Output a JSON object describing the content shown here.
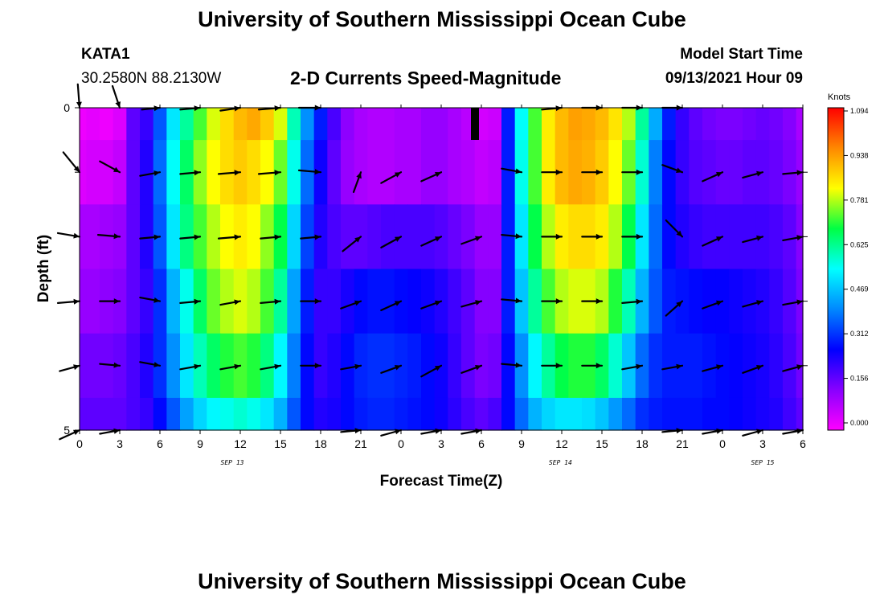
{
  "page": {
    "title_top": "University of Southern Mississippi Ocean Cube",
    "title_bottom": "University of Southern Mississippi Ocean Cube",
    "station_id": "KATA1",
    "coordinates": "30.2580N  88.2130W",
    "subtitle": "2-D Currents Speed-Magnitude",
    "model_start_label": "Model Start Time",
    "model_start_value": "09/13/2021 Hour 09"
  },
  "chart_data": {
    "type": "heatmap",
    "title": "2-D Currents Speed-Magnitude",
    "xlabel": "Forecast Time(Z)",
    "ylabel": "Depth (ft)",
    "xlim": [
      0,
      54
    ],
    "ylim": [
      0,
      5
    ],
    "x_tick_labels": [
      "0",
      "3",
      "6",
      "9",
      "12",
      "15",
      "18",
      "21",
      "0",
      "3",
      "6",
      "9",
      "12",
      "15",
      "18",
      "21",
      "0",
      "3",
      "6"
    ],
    "date_labels": [
      {
        "label": "SEP 13",
        "x": 11.4
      },
      {
        "label": "SEP 14",
        "x": 35.9
      },
      {
        "label": "SEP 15",
        "x": 51.0
      }
    ],
    "y_tick_labels": [
      {
        "label": "0",
        "value": 0
      },
      {
        "label": "5",
        "value": 5
      }
    ],
    "y_minor_ticks": [
      1,
      2,
      3,
      4
    ],
    "colorbar": {
      "units": "Knots",
      "min": 0.0,
      "max": 1.094,
      "tick_labels": [
        "1.094",
        "0.938",
        "0.781",
        "0.625",
        "0.469",
        "0.312",
        "0.156",
        "0.000"
      ],
      "colors": [
        "#ff00ff",
        "#8800ff",
        "#0000ff",
        "#0088ff",
        "#00ffff",
        "#00ff44",
        "#ffff00",
        "#ff8800",
        "#ff0000"
      ]
    },
    "time_hours": [
      0,
      1,
      2,
      3,
      4,
      5,
      6,
      7,
      8,
      9,
      10,
      11,
      12,
      13,
      14,
      15,
      16,
      17,
      18,
      19,
      20,
      21,
      22,
      23,
      24,
      25,
      26,
      27,
      28,
      29,
      30,
      31,
      32,
      33,
      34,
      35,
      36,
      37,
      38,
      39,
      40,
      41,
      42,
      43,
      44,
      45,
      46,
      47,
      48,
      49,
      50,
      51,
      52,
      53,
      54
    ],
    "depth_layers": [
      {
        "depth_range": [
          0,
          0.5
        ],
        "speed": [
          0.02,
          0.03,
          0.02,
          0.04,
          0.18,
          0.22,
          0.36,
          0.52,
          0.62,
          0.72,
          0.8,
          0.86,
          0.9,
          0.92,
          0.88,
          0.8,
          0.6,
          0.42,
          0.3,
          0.2,
          0.13,
          0.1,
          0.09,
          0.09,
          0.1,
          0.1,
          0.12,
          0.12,
          0.1,
          0.08,
          0.05,
          0.06,
          0.3,
          0.55,
          0.72,
          0.84,
          0.9,
          0.93,
          0.92,
          0.9,
          0.85,
          0.78,
          0.62,
          0.45,
          0.3,
          0.22,
          0.18,
          0.16,
          0.15,
          0.15,
          0.16,
          0.17,
          0.16,
          0.14,
          0.1
        ]
      },
      {
        "depth_range": [
          0.5,
          1.5
        ],
        "speed": [
          0.04,
          0.05,
          0.05,
          0.07,
          0.18,
          0.24,
          0.38,
          0.55,
          0.66,
          0.76,
          0.82,
          0.86,
          0.88,
          0.86,
          0.82,
          0.74,
          0.56,
          0.38,
          0.26,
          0.18,
          0.12,
          0.1,
          0.09,
          0.09,
          0.1,
          0.1,
          0.12,
          0.12,
          0.1,
          0.09,
          0.07,
          0.08,
          0.3,
          0.56,
          0.72,
          0.84,
          0.9,
          0.92,
          0.91,
          0.88,
          0.82,
          0.74,
          0.58,
          0.4,
          0.28,
          0.22,
          0.19,
          0.18,
          0.17,
          0.17,
          0.18,
          0.18,
          0.17,
          0.15,
          0.12
        ]
      },
      {
        "depth_range": [
          1.5,
          2.5
        ],
        "speed": [
          0.1,
          0.1,
          0.11,
          0.12,
          0.18,
          0.24,
          0.36,
          0.52,
          0.64,
          0.72,
          0.78,
          0.82,
          0.84,
          0.82,
          0.76,
          0.68,
          0.5,
          0.34,
          0.24,
          0.2,
          0.18,
          0.18,
          0.19,
          0.2,
          0.2,
          0.2,
          0.2,
          0.19,
          0.17,
          0.15,
          0.12,
          0.12,
          0.3,
          0.52,
          0.68,
          0.78,
          0.84,
          0.86,
          0.86,
          0.84,
          0.78,
          0.68,
          0.52,
          0.38,
          0.28,
          0.24,
          0.22,
          0.21,
          0.21,
          0.21,
          0.21,
          0.21,
          0.2,
          0.18,
          0.14
        ]
      },
      {
        "depth_range": [
          2.5,
          3.5
        ],
        "speed": [
          0.12,
          0.12,
          0.13,
          0.14,
          0.18,
          0.22,
          0.32,
          0.46,
          0.56,
          0.66,
          0.74,
          0.78,
          0.8,
          0.78,
          0.72,
          0.62,
          0.44,
          0.3,
          0.22,
          0.22,
          0.25,
          0.28,
          0.29,
          0.29,
          0.28,
          0.27,
          0.26,
          0.24,
          0.21,
          0.18,
          0.14,
          0.14,
          0.3,
          0.48,
          0.62,
          0.72,
          0.78,
          0.8,
          0.8,
          0.78,
          0.7,
          0.6,
          0.46,
          0.36,
          0.3,
          0.29,
          0.28,
          0.27,
          0.27,
          0.26,
          0.25,
          0.24,
          0.22,
          0.19,
          0.15
        ]
      },
      {
        "depth_range": [
          3.5,
          4.5
        ],
        "speed": [
          0.16,
          0.16,
          0.16,
          0.17,
          0.2,
          0.24,
          0.32,
          0.42,
          0.52,
          0.6,
          0.66,
          0.7,
          0.72,
          0.7,
          0.64,
          0.54,
          0.4,
          0.28,
          0.22,
          0.24,
          0.28,
          0.31,
          0.32,
          0.32,
          0.31,
          0.3,
          0.28,
          0.26,
          0.22,
          0.18,
          0.15,
          0.16,
          0.28,
          0.42,
          0.54,
          0.62,
          0.68,
          0.7,
          0.7,
          0.66,
          0.58,
          0.48,
          0.38,
          0.32,
          0.3,
          0.3,
          0.3,
          0.29,
          0.28,
          0.27,
          0.26,
          0.25,
          0.23,
          0.2,
          0.16
        ]
      },
      {
        "depth_range": [
          4.5,
          5.0
        ],
        "speed": [
          0.18,
          0.18,
          0.18,
          0.18,
          0.2,
          0.22,
          0.28,
          0.36,
          0.44,
          0.5,
          0.54,
          0.56,
          0.58,
          0.56,
          0.52,
          0.46,
          0.36,
          0.28,
          0.24,
          0.25,
          0.28,
          0.3,
          0.31,
          0.31,
          0.3,
          0.29,
          0.28,
          0.26,
          0.23,
          0.2,
          0.18,
          0.2,
          0.28,
          0.38,
          0.46,
          0.5,
          0.52,
          0.52,
          0.51,
          0.48,
          0.43,
          0.38,
          0.32,
          0.3,
          0.29,
          0.29,
          0.29,
          0.28,
          0.28,
          0.27,
          0.26,
          0.25,
          0.24,
          0.21,
          0.18
        ]
      }
    ],
    "vector_times": [
      0,
      3,
      6,
      9,
      12,
      15,
      18,
      21,
      24,
      27,
      30,
      33,
      36,
      39,
      42,
      45,
      48,
      51,
      54
    ],
    "vectors": [
      {
        "depth": 0,
        "u": [
          0.05,
          0.2,
          0.5,
          0.55,
          0.55,
          0.6,
          0.6,
          0.0,
          0.0,
          0.0,
          0.0,
          0.0,
          0.55,
          0.55,
          0.55,
          0.55,
          0.0,
          0.0,
          0.0
        ],
        "v": [
          -0.65,
          -0.6,
          0.05,
          0.05,
          0.08,
          0.05,
          0.0,
          0.0,
          0.0,
          0.0,
          0.0,
          0.0,
          0.05,
          0.0,
          0.0,
          0.0,
          0.0,
          0.0,
          0.0
        ]
      },
      {
        "depth": 1,
        "u": [
          0.45,
          0.55,
          0.55,
          0.55,
          0.6,
          0.6,
          0.6,
          0.2,
          0.55,
          0.55,
          0.0,
          0.55,
          0.55,
          0.55,
          0.55,
          0.55,
          0.55,
          0.55,
          0.55
        ],
        "v": [
          -0.55,
          -0.3,
          0.1,
          0.05,
          0.05,
          0.05,
          -0.05,
          0.55,
          0.3,
          0.25,
          0.0,
          -0.1,
          0.0,
          0.0,
          0.0,
          -0.2,
          0.25,
          0.15,
          0.05
        ]
      },
      {
        "depth": 2,
        "u": [
          0.6,
          0.6,
          0.55,
          0.55,
          0.6,
          0.55,
          0.55,
          0.5,
          0.55,
          0.55,
          0.55,
          0.55,
          0.55,
          0.55,
          0.55,
          0.45,
          0.55,
          0.55,
          0.55
        ],
        "v": [
          -0.1,
          -0.05,
          0.05,
          0.05,
          0.05,
          0.05,
          0.05,
          0.4,
          0.3,
          0.25,
          0.2,
          -0.05,
          0.0,
          0.0,
          0.0,
          -0.45,
          0.25,
          0.15,
          0.1
        ]
      },
      {
        "depth": 3,
        "u": [
          0.6,
          0.55,
          0.55,
          0.55,
          0.55,
          0.55,
          0.55,
          0.55,
          0.55,
          0.55,
          0.55,
          0.55,
          0.55,
          0.55,
          0.55,
          0.45,
          0.55,
          0.55,
          0.55
        ],
        "v": [
          0.05,
          0.0,
          -0.1,
          0.05,
          0.1,
          0.05,
          0.0,
          0.2,
          0.25,
          0.2,
          0.15,
          -0.05,
          0.0,
          0.0,
          0.05,
          0.4,
          0.2,
          0.15,
          0.1
        ]
      },
      {
        "depth": 4,
        "u": [
          0.55,
          0.55,
          0.55,
          0.55,
          0.55,
          0.55,
          0.55,
          0.55,
          0.55,
          0.55,
          0.55,
          0.55,
          0.55,
          0.55,
          0.55,
          0.55,
          0.55,
          0.55,
          0.55
        ],
        "v": [
          0.15,
          -0.05,
          -0.1,
          0.1,
          0.1,
          0.1,
          0.0,
          0.1,
          0.2,
          0.3,
          0.2,
          -0.05,
          0.0,
          0.0,
          0.1,
          0.1,
          0.15,
          0.2,
          0.15
        ]
      },
      {
        "depth": 5,
        "u": [
          0.55,
          0.55,
          0.0,
          0.0,
          0.0,
          0.0,
          0.0,
          0.55,
          0.55,
          0.55,
          0.55,
          0.0,
          0.0,
          0.0,
          0.0,
          0.55,
          0.55,
          0.55,
          0.55
        ],
        "v": [
          0.25,
          0.1,
          0.0,
          0.0,
          0.0,
          0.0,
          0.0,
          0.05,
          0.15,
          0.1,
          0.1,
          0.0,
          0.0,
          0.0,
          0.0,
          0.05,
          0.1,
          0.15,
          0.1
        ]
      }
    ]
  }
}
